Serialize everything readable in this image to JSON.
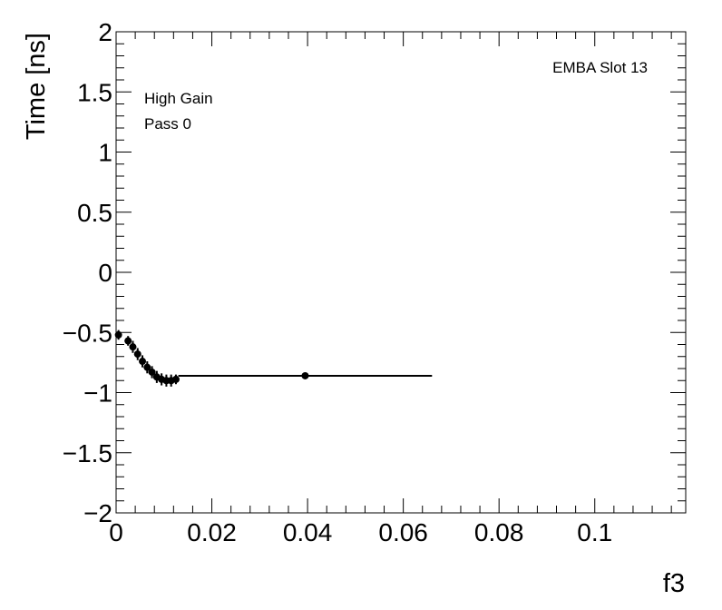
{
  "chart_data": {
    "type": "scatter",
    "xlabel": "f3",
    "ylabel": "Time [ns]",
    "xlim": [
      0,
      0.119
    ],
    "ylim": [
      -2,
      2
    ],
    "x_ticks": [
      {
        "value": 0,
        "label": "0"
      },
      {
        "value": 0.02,
        "label": "0.02"
      },
      {
        "value": 0.04,
        "label": "0.04"
      },
      {
        "value": 0.06,
        "label": "0.06"
      },
      {
        "value": 0.08,
        "label": "0.08"
      },
      {
        "value": 0.1,
        "label": "0.1"
      }
    ],
    "y_ticks": [
      {
        "value": 2,
        "label": "2"
      },
      {
        "value": 1.5,
        "label": "1.5"
      },
      {
        "value": 1,
        "label": "1"
      },
      {
        "value": 0.5,
        "label": "0.5"
      },
      {
        "value": 0,
        "label": "0"
      },
      {
        "value": -0.5,
        "label": "−0.5"
      },
      {
        "value": -1,
        "label": "−1"
      },
      {
        "value": -1.5,
        "label": "−1.5"
      },
      {
        "value": -2,
        "label": "−2"
      }
    ],
    "annotations": {
      "slot": "EMBA Slot 13",
      "gain": "High Gain",
      "pass": "Pass 0"
    },
    "grid": false,
    "marker_color": "#000000",
    "series": [
      {
        "points": [
          {
            "x": 0.0005,
            "y": -0.52,
            "xerr": 0.0005,
            "yerr": 0.04
          },
          {
            "x": 0.0025,
            "y": -0.57,
            "xerr": 0.0005,
            "yerr": 0.04
          },
          {
            "x": 0.0035,
            "y": -0.62,
            "xerr": 0.0005,
            "yerr": 0.05
          },
          {
            "x": 0.0045,
            "y": -0.68,
            "xerr": 0.0005,
            "yerr": 0.05
          },
          {
            "x": 0.0055,
            "y": -0.74,
            "xerr": 0.0005,
            "yerr": 0.05
          },
          {
            "x": 0.0065,
            "y": -0.79,
            "xerr": 0.0005,
            "yerr": 0.05
          },
          {
            "x": 0.0075,
            "y": -0.83,
            "xerr": 0.0005,
            "yerr": 0.05
          },
          {
            "x": 0.0085,
            "y": -0.87,
            "xerr": 0.0005,
            "yerr": 0.05
          },
          {
            "x": 0.0095,
            "y": -0.89,
            "xerr": 0.0005,
            "yerr": 0.05
          },
          {
            "x": 0.0105,
            "y": -0.9,
            "xerr": 0.0005,
            "yerr": 0.05
          },
          {
            "x": 0.0115,
            "y": -0.9,
            "xerr": 0.0005,
            "yerr": 0.05
          },
          {
            "x": 0.0125,
            "y": -0.89,
            "xerr": 0.0005,
            "yerr": 0.04
          },
          {
            "x": 0.0395,
            "y": -0.86,
            "xerr": 0.0265,
            "yerr": 0.02
          }
        ]
      }
    ]
  }
}
